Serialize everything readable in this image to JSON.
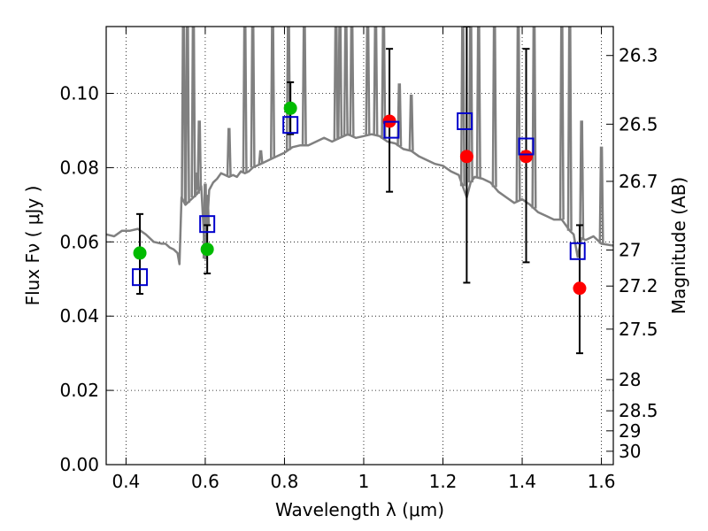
{
  "chart_data": {
    "type": "scatter",
    "title": "",
    "xlabel": "Wavelength  λ (μm)",
    "ylabel": "Flux  Fν  ( μJy )",
    "ylabel_right": "Magnitude (AB)",
    "xlim": [
      0.35,
      1.63
    ],
    "ylim": [
      0.0,
      0.118
    ],
    "grid": true,
    "x_ticks": [
      0.4,
      0.6,
      0.8,
      1.0,
      1.2,
      1.4,
      1.6
    ],
    "x_tick_labels": [
      "0.4",
      "0.6",
      "0.8",
      "1",
      "1.2",
      "1.4",
      "1.6"
    ],
    "y_ticks": [
      0.0,
      0.02,
      0.04,
      0.06,
      0.08,
      0.1
    ],
    "y_tick_labels": [
      "0.00",
      "0.02",
      "0.04",
      "0.06",
      "0.08",
      "0.10"
    ],
    "right_axis_ticks": [
      {
        "label": "26.3",
        "flux": 0.1102
      },
      {
        "label": "26.5",
        "flux": 0.0917
      },
      {
        "label": "26.7",
        "flux": 0.0763
      },
      {
        "label": "27",
        "flux": 0.0578
      },
      {
        "label": "27.2",
        "flux": 0.0481
      },
      {
        "label": "27.5",
        "flux": 0.0365
      },
      {
        "label": "28",
        "flux": 0.0229
      },
      {
        "label": "28.5",
        "flux": 0.0145
      },
      {
        "label": "29",
        "flux": 0.0091
      },
      {
        "label": "30",
        "flux": 0.0036
      }
    ],
    "series": [
      {
        "color": "#808080",
        "style": "line",
        "x": [
          0.35,
          0.37,
          0.39,
          0.41,
          0.43,
          0.45,
          0.47,
          0.49,
          0.5,
          0.51,
          0.52,
          0.53,
          0.535,
          0.54,
          0.55,
          0.56,
          0.57,
          0.58,
          0.59,
          0.6,
          0.61,
          0.62,
          0.63,
          0.64,
          0.65,
          0.66,
          0.67,
          0.68,
          0.69,
          0.7,
          0.71,
          0.72,
          0.73,
          0.74,
          0.76,
          0.78,
          0.8,
          0.82,
          0.84,
          0.86,
          0.88,
          0.9,
          0.92,
          0.94,
          0.96,
          0.98,
          1.0,
          1.02,
          1.04,
          1.06,
          1.08,
          1.1,
          1.12,
          1.14,
          1.16,
          1.18,
          1.2,
          1.22,
          1.24,
          1.25,
          1.26,
          1.27,
          1.28,
          1.3,
          1.32,
          1.34,
          1.36,
          1.38,
          1.4,
          1.42,
          1.44,
          1.46,
          1.48,
          1.5,
          1.52,
          1.53,
          1.54,
          1.55,
          1.56,
          1.58,
          1.6,
          1.63
        ],
        "y": [
          0.062,
          0.0615,
          0.063,
          0.063,
          0.0635,
          0.062,
          0.06,
          0.0595,
          0.0595,
          0.0585,
          0.058,
          0.057,
          0.054,
          0.072,
          0.07,
          0.071,
          0.072,
          0.073,
          0.075,
          0.0555,
          0.074,
          0.076,
          0.077,
          0.0785,
          0.078,
          0.0775,
          0.078,
          0.0775,
          0.079,
          0.0785,
          0.079,
          0.08,
          0.0805,
          0.081,
          0.082,
          0.083,
          0.084,
          0.0855,
          0.086,
          0.086,
          0.087,
          0.088,
          0.087,
          0.088,
          0.089,
          0.088,
          0.0885,
          0.089,
          0.0885,
          0.087,
          0.0865,
          0.085,
          0.0845,
          0.083,
          0.082,
          0.081,
          0.0805,
          0.079,
          0.078,
          0.075,
          0.072,
          0.076,
          0.0775,
          0.077,
          0.076,
          0.0735,
          0.072,
          0.0705,
          0.0715,
          0.07,
          0.068,
          0.067,
          0.066,
          0.066,
          0.063,
          0.062,
          0.056,
          0.061,
          0.0605,
          0.0615,
          0.0595,
          0.059
        ]
      },
      {
        "color": "#808080",
        "style": "spikes",
        "x": [
          0.545,
          0.555,
          0.57,
          0.58,
          0.585,
          0.6,
          0.605,
          0.66,
          0.7,
          0.72,
          0.74,
          0.77,
          0.81,
          0.85,
          0.93,
          0.94,
          0.955,
          0.97,
          1.01,
          1.03,
          1.05,
          1.09,
          1.12,
          1.25,
          1.27,
          1.29,
          1.33,
          1.39,
          1.43,
          1.5,
          1.52,
          1.55,
          1.6
        ],
        "y": [
          0.118,
          0.118,
          0.118,
          0.076,
          0.09,
          0.073,
          0.07,
          0.088,
          0.118,
          0.118,
          0.082,
          0.118,
          0.118,
          0.118,
          0.118,
          0.118,
          0.118,
          0.118,
          0.118,
          0.118,
          0.118,
          0.1,
          0.097,
          0.118,
          0.118,
          0.118,
          0.118,
          0.118,
          0.118,
          0.118,
          0.118,
          0.09,
          0.083
        ]
      },
      {
        "color": "#00bb00",
        "marker": "circle",
        "x": [
          0.435,
          0.605,
          0.815
        ],
        "y": [
          0.057,
          0.058,
          0.096
        ],
        "yerr_low": [
          0.046,
          0.0515,
          0.089
        ],
        "yerr_high": [
          0.0675,
          0.0645,
          0.103
        ]
      },
      {
        "color": "#ff0000",
        "marker": "circle",
        "x": [
          1.065,
          1.26,
          1.41,
          1.545
        ],
        "y": [
          0.0925,
          0.083,
          0.083,
          0.0475
        ],
        "yerr_low": [
          0.0735,
          0.049,
          0.0545,
          0.03
        ],
        "yerr_high": [
          0.112,
          0.118,
          0.112,
          0.0645
        ]
      },
      {
        "color": "#0000cc",
        "marker": "square-open",
        "x": [
          0.435,
          0.605,
          0.815,
          1.07,
          1.255,
          1.41,
          1.54
        ],
        "y": [
          0.0505,
          0.0648,
          0.0915,
          0.0902,
          0.0925,
          0.0857,
          0.0575
        ]
      }
    ]
  }
}
